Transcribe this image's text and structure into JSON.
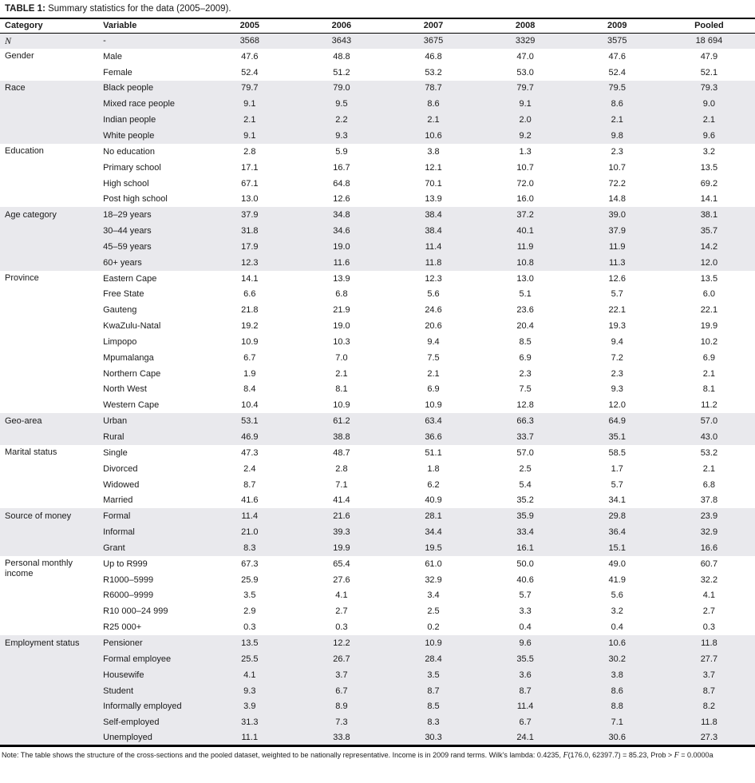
{
  "title": {
    "label": "TABLE 1:",
    "text": " Summary statistics for the data (2005–2009)."
  },
  "colors": {
    "shaded_row": "#e9e9ed",
    "border": "#000000",
    "text": "#1a1a1a"
  },
  "table": {
    "columns": [
      "Category",
      "Variable",
      "2005",
      "2006",
      "2007",
      "2008",
      "2009",
      "Pooled"
    ],
    "groups": [
      {
        "category": "N",
        "italic": true,
        "shaded": true,
        "rows": [
          {
            "variable": "-",
            "values": [
              "3568",
              "3643",
              "3675",
              "3329",
              "3575",
              "18 694"
            ]
          }
        ]
      },
      {
        "category": "Gender",
        "italic": false,
        "shaded": false,
        "rows": [
          {
            "variable": "Male",
            "values": [
              "47.6",
              "48.8",
              "46.8",
              "47.0",
              "47.6",
              "47.9"
            ]
          },
          {
            "variable": "Female",
            "values": [
              "52.4",
              "51.2",
              "53.2",
              "53.0",
              "52.4",
              "52.1"
            ]
          }
        ]
      },
      {
        "category": "Race",
        "italic": false,
        "shaded": true,
        "rows": [
          {
            "variable": "Black people",
            "values": [
              "79.7",
              "79.0",
              "78.7",
              "79.7",
              "79.5",
              "79.3"
            ]
          },
          {
            "variable": "Mixed race people",
            "values": [
              "9.1",
              "9.5",
              "8.6",
              "9.1",
              "8.6",
              "9.0"
            ]
          },
          {
            "variable": "Indian people",
            "values": [
              "2.1",
              "2.2",
              "2.1",
              "2.0",
              "2.1",
              "2.1"
            ]
          },
          {
            "variable": "White people",
            "values": [
              "9.1",
              "9.3",
              "10.6",
              "9.2",
              "9.8",
              "9.6"
            ]
          }
        ]
      },
      {
        "category": "Education",
        "italic": false,
        "shaded": false,
        "rows": [
          {
            "variable": "No education",
            "values": [
              "2.8",
              "5.9",
              "3.8",
              "1.3",
              "2.3",
              "3.2"
            ]
          },
          {
            "variable": "Primary school",
            "values": [
              "17.1",
              "16.7",
              "12.1",
              "10.7",
              "10.7",
              "13.5"
            ]
          },
          {
            "variable": "High school",
            "values": [
              "67.1",
              "64.8",
              "70.1",
              "72.0",
              "72.2",
              "69.2"
            ]
          },
          {
            "variable": "Post high school",
            "values": [
              "13.0",
              "12.6",
              "13.9",
              "16.0",
              "14.8",
              "14.1"
            ]
          }
        ]
      },
      {
        "category": "Age category",
        "italic": false,
        "shaded": true,
        "rows": [
          {
            "variable": "18–29 years",
            "values": [
              "37.9",
              "34.8",
              "38.4",
              "37.2",
              "39.0",
              "38.1"
            ]
          },
          {
            "variable": "30–44 years",
            "values": [
              "31.8",
              "34.6",
              "38.4",
              "40.1",
              "37.9",
              "35.7"
            ]
          },
          {
            "variable": "45–59 years",
            "values": [
              "17.9",
              "19.0",
              "11.4",
              "11.9",
              "11.9",
              "14.2"
            ]
          },
          {
            "variable": "60+ years",
            "values": [
              "12.3",
              "11.6",
              "11.8",
              "10.8",
              "11.3",
              "12.0"
            ]
          }
        ]
      },
      {
        "category": "Province",
        "italic": false,
        "shaded": false,
        "rows": [
          {
            "variable": "Eastern Cape",
            "values": [
              "14.1",
              "13.9",
              "12.3",
              "13.0",
              "12.6",
              "13.5"
            ]
          },
          {
            "variable": "Free State",
            "values": [
              "6.6",
              "6.8",
              "5.6",
              "5.1",
              "5.7",
              "6.0"
            ]
          },
          {
            "variable": "Gauteng",
            "values": [
              "21.8",
              "21.9",
              "24.6",
              "23.6",
              "22.1",
              "22.1"
            ]
          },
          {
            "variable": "KwaZulu-Natal",
            "values": [
              "19.2",
              "19.0",
              "20.6",
              "20.4",
              "19.3",
              "19.9"
            ]
          },
          {
            "variable": "Limpopo",
            "values": [
              "10.9",
              "10.3",
              "9.4",
              "8.5",
              "9.4",
              "10.2"
            ]
          },
          {
            "variable": "Mpumalanga",
            "values": [
              "6.7",
              "7.0",
              "7.5",
              "6.9",
              "7.2",
              "6.9"
            ]
          },
          {
            "variable": "Northern Cape",
            "values": [
              "1.9",
              "2.1",
              "2.1",
              "2.3",
              "2.3",
              "2.1"
            ]
          },
          {
            "variable": "North West",
            "values": [
              "8.4",
              "8.1",
              "6.9",
              "7.5",
              "9.3",
              "8.1"
            ]
          },
          {
            "variable": "Western Cape",
            "values": [
              "10.4",
              "10.9",
              "10.9",
              "12.8",
              "12.0",
              "11.2"
            ]
          }
        ]
      },
      {
        "category": "Geo-area",
        "italic": false,
        "shaded": true,
        "rows": [
          {
            "variable": "Urban",
            "values": [
              "53.1",
              "61.2",
              "63.4",
              "66.3",
              "64.9",
              "57.0"
            ]
          },
          {
            "variable": "Rural",
            "values": [
              "46.9",
              "38.8",
              "36.6",
              "33.7",
              "35.1",
              "43.0"
            ]
          }
        ]
      },
      {
        "category": "Marital status",
        "italic": false,
        "shaded": false,
        "rows": [
          {
            "variable": "Single",
            "values": [
              "47.3",
              "48.7",
              "51.1",
              "57.0",
              "58.5",
              "53.2"
            ]
          },
          {
            "variable": "Divorced",
            "values": [
              "2.4",
              "2.8",
              "1.8",
              "2.5",
              "1.7",
              "2.1"
            ]
          },
          {
            "variable": "Widowed",
            "values": [
              "8.7",
              "7.1",
              "6.2",
              "5.4",
              "5.7",
              "6.8"
            ]
          },
          {
            "variable": "Married",
            "values": [
              "41.6",
              "41.4",
              "40.9",
              "35.2",
              "34.1",
              "37.8"
            ]
          }
        ]
      },
      {
        "category": "Source of money",
        "italic": false,
        "shaded": true,
        "rows": [
          {
            "variable": "Formal",
            "values": [
              "11.4",
              "21.6",
              "28.1",
              "35.9",
              "29.8",
              "23.9"
            ]
          },
          {
            "variable": "Informal",
            "values": [
              "21.0",
              "39.3",
              "34.4",
              "33.4",
              "36.4",
              "32.9"
            ]
          },
          {
            "variable": "Grant",
            "values": [
              "8.3",
              "19.9",
              "19.5",
              "16.1",
              "15.1",
              "16.6"
            ]
          }
        ]
      },
      {
        "category": "Personal monthly income",
        "italic": false,
        "shaded": false,
        "rows": [
          {
            "variable": "Up to R999",
            "values": [
              "67.3",
              "65.4",
              "61.0",
              "50.0",
              "49.0",
              "60.7"
            ]
          },
          {
            "variable": "R1000–5999",
            "values": [
              "25.9",
              "27.6",
              "32.9",
              "40.6",
              "41.9",
              "32.2"
            ]
          },
          {
            "variable": "R6000–9999",
            "values": [
              "3.5",
              "4.1",
              "3.4",
              "5.7",
              "5.6",
              "4.1"
            ]
          },
          {
            "variable": "R10 000–24 999",
            "values": [
              "2.9",
              "2.7",
              "2.5",
              "3.3",
              "3.2",
              "2.7"
            ]
          },
          {
            "variable": "R25 000+",
            "values": [
              "0.3",
              "0.3",
              "0.2",
              "0.4",
              "0.4",
              "0.3"
            ]
          }
        ]
      },
      {
        "category": "Employment status",
        "italic": false,
        "shaded": true,
        "rows": [
          {
            "variable": "Pensioner",
            "values": [
              "13.5",
              "12.2",
              "10.9",
              "9.6",
              "10.6",
              "11.8"
            ]
          },
          {
            "variable": "Formal employee",
            "values": [
              "25.5",
              "26.7",
              "28.4",
              "35.5",
              "30.2",
              "27.7"
            ]
          },
          {
            "variable": "Housewife",
            "values": [
              "4.1",
              "3.7",
              "3.5",
              "3.6",
              "3.8",
              "3.7"
            ]
          },
          {
            "variable": "Student",
            "values": [
              "9.3",
              "6.7",
              "8.7",
              "8.7",
              "8.6",
              "8.7"
            ]
          },
          {
            "variable": "Informally employed",
            "values": [
              "3.9",
              "8.9",
              "8.5",
              "11.4",
              "8.8",
              "8.2"
            ]
          },
          {
            "variable": "Self-employed",
            "values": [
              "31.3",
              "7.3",
              "8.3",
              "6.7",
              "7.1",
              "11.8"
            ]
          },
          {
            "variable": "Unemployed",
            "values": [
              "11.1",
              "33.8",
              "30.3",
              "24.1",
              "30.6",
              "27.3"
            ]
          }
        ]
      }
    ]
  },
  "note": {
    "parts": [
      {
        "text": "Note: The table shows the structure of the cross-sections and the pooled dataset, weighted to be nationally representative. Income is in 2009 rand terms. Wilk's lambda: 0.4235, ",
        "italic": false
      },
      {
        "text": "F",
        "italic": true
      },
      {
        "text": "(176.0, 62397.7) = 85.23, Prob > ",
        "italic": false
      },
      {
        "text": "F",
        "italic": true
      },
      {
        "text": " = 0.0000a",
        "italic": false
      }
    ]
  }
}
